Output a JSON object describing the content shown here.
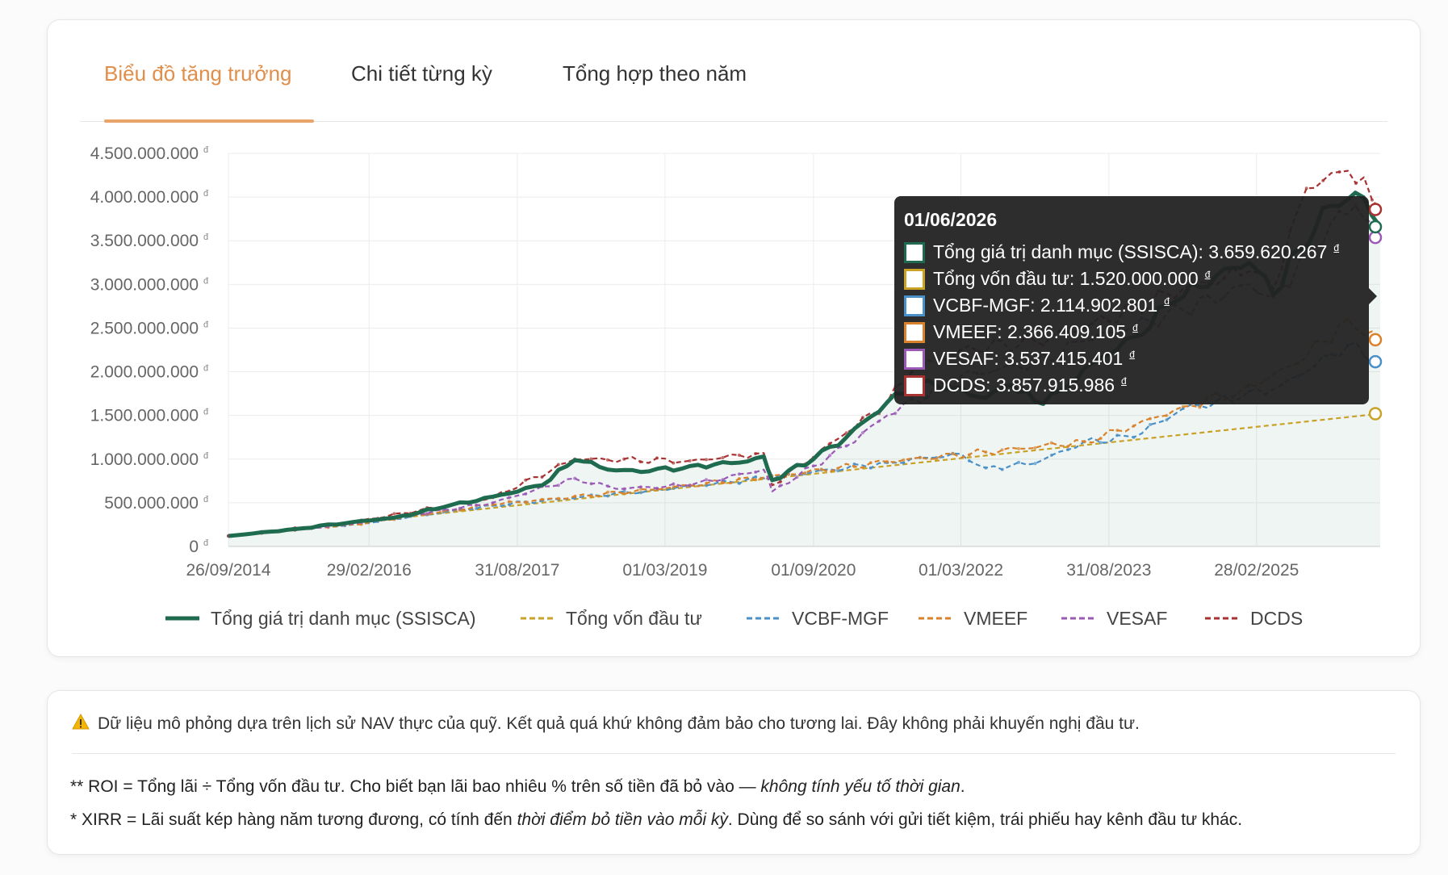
{
  "tabs": [
    {
      "label": "Biểu đồ tăng trưởng",
      "active": true
    },
    {
      "label": "Chi tiết từng kỳ",
      "active": false
    },
    {
      "label": "Tổng hợp theo năm",
      "active": false
    }
  ],
  "currency_symbol": "đ",
  "colors": {
    "accent": "#e08e4a",
    "portfolio": "#1e6b4f",
    "capital": "#c9a227",
    "vcbf": "#4a90c8",
    "vmeef": "#d9822b",
    "vesaf": "#9b59b6",
    "dcds": "#a83232"
  },
  "chart_data": {
    "type": "line",
    "y_tick_labels": [
      "0",
      "500.000.000",
      "1.000.000.000",
      "1.500.000.000",
      "2.000.000.000",
      "2.500.000.000",
      "3.000.000.000",
      "3.500.000.000",
      "4.000.000.000",
      "4.500.000.000"
    ],
    "ylim": [
      0,
      4500000000
    ],
    "x_range": [
      "2014-09-26",
      "2026-06-01"
    ],
    "x_ticks": [
      "26/09/2014",
      "29/02/2016",
      "31/08/2017",
      "01/03/2019",
      "01/09/2020",
      "01/03/2022",
      "31/08/2023",
      "28/02/2025"
    ],
    "grid": true,
    "legend_position": "bottom",
    "series": [
      {
        "name": "Tổng giá trị danh mục (SSISCA)",
        "key": "portfolio",
        "style": "solid",
        "points": [
          [
            "2014-09-26",
            120000000
          ],
          [
            "2015-06-01",
            200000000
          ],
          [
            "2016-01-01",
            280000000
          ],
          [
            "2016-06-01",
            330000000
          ],
          [
            "2016-12-01",
            450000000
          ],
          [
            "2017-06-01",
            570000000
          ],
          [
            "2017-12-01",
            700000000
          ],
          [
            "2018-04-01",
            990000000
          ],
          [
            "2018-09-01",
            870000000
          ],
          [
            "2019-01-01",
            860000000
          ],
          [
            "2019-06-01",
            920000000
          ],
          [
            "2019-12-01",
            960000000
          ],
          [
            "2020-03-01",
            1030000000
          ],
          [
            "2020-04-01",
            760000000
          ],
          [
            "2020-09-01",
            1000000000
          ],
          [
            "2021-01-01",
            1250000000
          ],
          [
            "2021-06-01",
            1650000000
          ],
          [
            "2021-11-01",
            1900000000
          ],
          [
            "2022-02-01",
            1820000000
          ],
          [
            "2022-06-01",
            1700000000
          ],
          [
            "2022-09-01",
            1850000000
          ],
          [
            "2022-12-01",
            1660000000
          ],
          [
            "2023-03-01",
            1780000000
          ],
          [
            "2023-07-01",
            2100000000
          ],
          [
            "2023-12-01",
            2400000000
          ],
          [
            "2024-05-01",
            2800000000
          ],
          [
            "2024-10-01",
            3100000000
          ],
          [
            "2025-02-01",
            3250000000
          ],
          [
            "2025-05-01",
            2880000000
          ],
          [
            "2025-08-01",
            3400000000
          ],
          [
            "2025-12-01",
            3900000000
          ],
          [
            "2026-03-01",
            4050000000
          ],
          [
            "2026-06-01",
            3659620267
          ]
        ]
      },
      {
        "name": "Tổng vốn đầu tư",
        "key": "capital",
        "style": "dashed",
        "points": [
          [
            "2014-09-26",
            120000000
          ],
          [
            "2026-06-01",
            1520000000
          ]
        ]
      },
      {
        "name": "VCBF-MGF",
        "key": "vcbf",
        "style": "dashed",
        "points": [
          [
            "2014-09-26",
            120000000
          ],
          [
            "2016-01-01",
            250000000
          ],
          [
            "2017-06-01",
            470000000
          ],
          [
            "2019-01-01",
            640000000
          ],
          [
            "2020-03-01",
            780000000
          ],
          [
            "2021-06-01",
            960000000
          ],
          [
            "2022-03-01",
            1060000000
          ],
          [
            "2022-06-01",
            900000000
          ],
          [
            "2022-12-01",
            950000000
          ],
          [
            "2023-06-01",
            1200000000
          ],
          [
            "2023-12-01",
            1250000000
          ],
          [
            "2024-06-01",
            1580000000
          ],
          [
            "2025-01-01",
            1700000000
          ],
          [
            "2025-06-01",
            1850000000
          ],
          [
            "2026-02-01",
            2300000000
          ],
          [
            "2026-06-01",
            2114902801
          ]
        ]
      },
      {
        "name": "VMEEF",
        "key": "vmeef",
        "style": "dashed",
        "points": [
          [
            "2014-09-26",
            120000000
          ],
          [
            "2016-01-01",
            250000000
          ],
          [
            "2017-06-01",
            480000000
          ],
          [
            "2019-01-01",
            650000000
          ],
          [
            "2020-03-01",
            790000000
          ],
          [
            "2021-06-01",
            970000000
          ],
          [
            "2022-06-01",
            1080000000
          ],
          [
            "2023-06-01",
            1200000000
          ],
          [
            "2023-12-01",
            1380000000
          ],
          [
            "2024-06-01",
            1600000000
          ],
          [
            "2025-01-01",
            1780000000
          ],
          [
            "2025-08-01",
            2100000000
          ],
          [
            "2026-02-01",
            2600000000
          ],
          [
            "2026-06-01",
            2366409105
          ]
        ]
      },
      {
        "name": "VESAF",
        "key": "vesaf",
        "style": "dashed",
        "points": [
          [
            "2014-09-26",
            120000000
          ],
          [
            "2016-01-01",
            260000000
          ],
          [
            "2017-06-01",
            500000000
          ],
          [
            "2018-04-01",
            780000000
          ],
          [
            "2018-09-01",
            660000000
          ],
          [
            "2019-06-01",
            700000000
          ],
          [
            "2020-03-01",
            880000000
          ],
          [
            "2020-04-01",
            630000000
          ],
          [
            "2021-01-01",
            1150000000
          ],
          [
            "2021-06-01",
            1500000000
          ],
          [
            "2022-03-01",
            1950000000
          ],
          [
            "2022-12-01",
            2100000000
          ],
          [
            "2023-06-01",
            2350000000
          ],
          [
            "2024-06-01",
            2700000000
          ],
          [
            "2025-02-01",
            3000000000
          ],
          [
            "2025-05-01",
            2850000000
          ],
          [
            "2025-12-01",
            3700000000
          ],
          [
            "2026-03-01",
            3900000000
          ],
          [
            "2026-06-01",
            3537415401
          ]
        ]
      },
      {
        "name": "DCDS",
        "key": "dcds",
        "style": "dashed",
        "points": [
          [
            "2014-09-26",
            120000000
          ],
          [
            "2016-01-01",
            280000000
          ],
          [
            "2017-06-01",
            560000000
          ],
          [
            "2018-04-01",
            1000000000
          ],
          [
            "2019-06-01",
            980000000
          ],
          [
            "2020-03-01",
            1070000000
          ],
          [
            "2020-04-01",
            700000000
          ],
          [
            "2021-01-01",
            1300000000
          ],
          [
            "2021-06-01",
            1650000000
          ],
          [
            "2021-09-01",
            2000000000
          ],
          [
            "2022-03-01",
            2250000000
          ],
          [
            "2022-12-01",
            2350000000
          ],
          [
            "2023-06-01",
            2500000000
          ],
          [
            "2024-06-01",
            2950000000
          ],
          [
            "2025-02-01",
            3150000000
          ],
          [
            "2025-05-01",
            2950000000
          ],
          [
            "2025-09-01",
            4100000000
          ],
          [
            "2026-02-01",
            4300000000
          ],
          [
            "2026-06-01",
            3857915986
          ]
        ]
      }
    ]
  },
  "tooltip": {
    "date": "01/06/2026",
    "rows": [
      {
        "label": "Tổng giá trị danh mục (SSISCA): 3.659.620.267",
        "key": "portfolio"
      },
      {
        "label": "Tổng vốn đầu tư: 1.520.000.000",
        "key": "capital"
      },
      {
        "label": "VCBF-MGF: 2.114.902.801",
        "key": "vcbf"
      },
      {
        "label": "VMEEF: 2.366.409.105",
        "key": "vmeef"
      },
      {
        "label": "VESAF: 3.537.415.401",
        "key": "vesaf"
      },
      {
        "label": "DCDS: 3.857.915.986",
        "key": "dcds"
      }
    ]
  },
  "notes": {
    "warning": "Dữ liệu mô phỏng dựa trên lịch sử NAV thực của quỹ. Kết quả quá khứ không đảm bảo cho tương lai. Đây không phải khuyến nghị đầu tư.",
    "roi_prefix": "** ROI = Tổng lãi ÷ Tổng vốn đầu tư. Cho biết bạn lãi bao nhiêu % trên số tiền đã bỏ vào — ",
    "roi_em": "không tính yếu tố thời gian",
    "roi_suffix": ".",
    "xirr_prefix": "* XIRR = Lãi suất kép hàng năm tương đương, có tính đến ",
    "xirr_em": "thời điểm bỏ tiền vào mỗi kỳ",
    "xirr_suffix": ". Dùng để so sánh với gửi tiết kiệm, trái phiếu hay kênh đầu tư khác."
  }
}
